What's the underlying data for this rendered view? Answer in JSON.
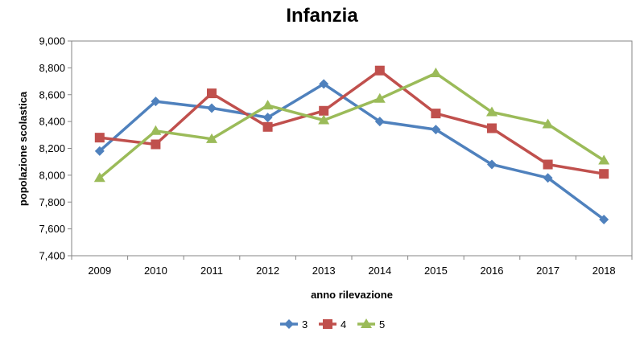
{
  "chart_data": {
    "type": "line",
    "title": "Infanzia",
    "xlabel": "anno rilevazione",
    "ylabel": "popolazione scolastica",
    "categories": [
      "2009",
      "2010",
      "2011",
      "2012",
      "2013",
      "2014",
      "2015",
      "2016",
      "2017",
      "2018"
    ],
    "ylim": [
      7400,
      9000
    ],
    "yticks": [
      7400,
      7600,
      7800,
      8000,
      8200,
      8400,
      8600,
      8800,
      9000
    ],
    "ytick_labels": [
      "7,400",
      "7,600",
      "7,800",
      "8,000",
      "8,200",
      "8,400",
      "8,600",
      "8,800",
      "9,000"
    ],
    "grid": false,
    "legend_position": "bottom",
    "series": [
      {
        "name": "3",
        "color": "#4F81BD",
        "marker": "diamond",
        "values": [
          8180,
          8550,
          8500,
          8430,
          8680,
          8400,
          8340,
          8080,
          7980,
          7670
        ]
      },
      {
        "name": "4",
        "color": "#C0504D",
        "marker": "square",
        "values": [
          8280,
          8230,
          8610,
          8360,
          8480,
          8780,
          8460,
          8350,
          8080,
          8010
        ]
      },
      {
        "name": "5",
        "color": "#9BBB59",
        "marker": "triangle",
        "values": [
          7980,
          8330,
          8270,
          8520,
          8410,
          8570,
          8760,
          8470,
          8380,
          8110
        ]
      }
    ]
  }
}
